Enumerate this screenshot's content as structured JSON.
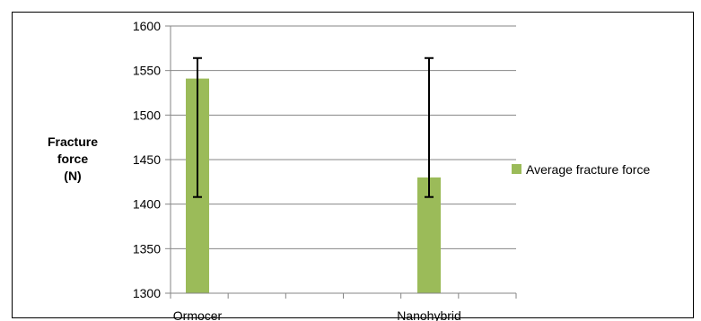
{
  "chart_data": {
    "type": "bar",
    "title": "",
    "xlabel": "",
    "ylabel": [
      "Fracture",
      "force",
      "(N)"
    ],
    "categories": [
      "Ormocer",
      "Nanohybrid"
    ],
    "series": [
      {
        "name": "Average fracture force",
        "values": [
          1541,
          1430
        ],
        "error_low": [
          1408,
          1408
        ],
        "error_high": [
          1564,
          1564
        ],
        "color": "#9bbb59"
      }
    ],
    "ylim": [
      1300,
      1600
    ],
    "yticks": [
      1300,
      1350,
      1400,
      1450,
      1500,
      1550,
      1600
    ],
    "grid": true,
    "gridline_color": "#868686",
    "legend": "right"
  }
}
